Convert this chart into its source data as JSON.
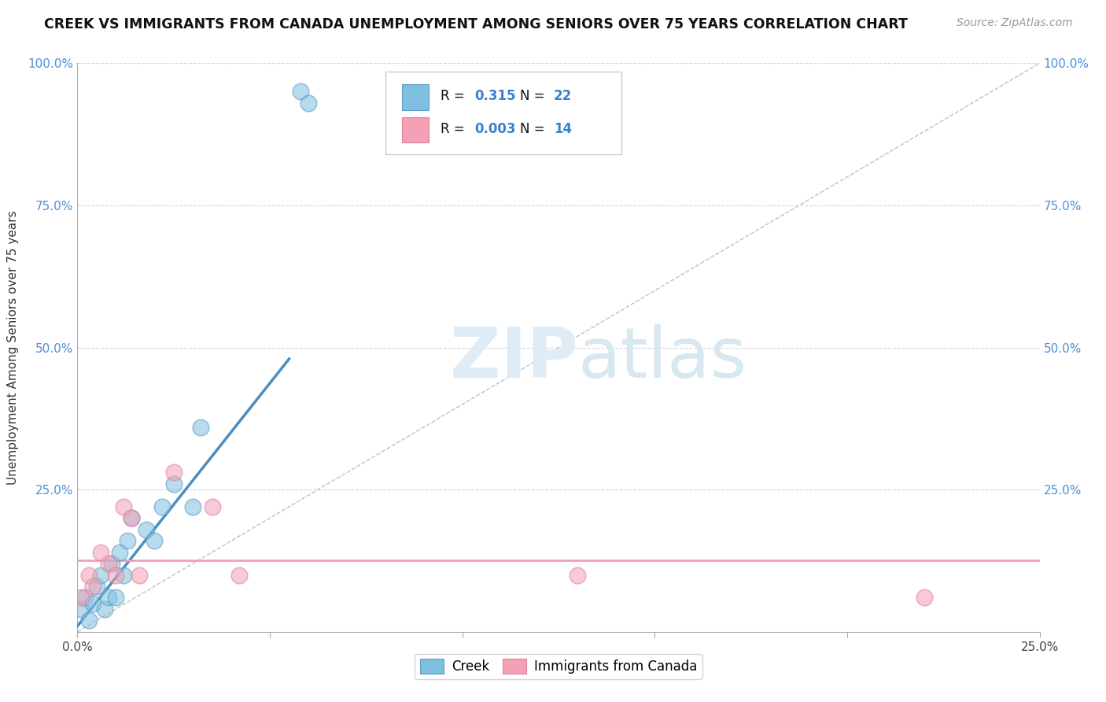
{
  "title": "CREEK VS IMMIGRANTS FROM CANADA UNEMPLOYMENT AMONG SENIORS OVER 75 YEARS CORRELATION CHART",
  "source": "Source: ZipAtlas.com",
  "ylabel": "Unemployment Among Seniors over 75 years",
  "xlim": [
    0.0,
    0.25
  ],
  "ylim": [
    0.0,
    1.0
  ],
  "xticks": [
    0.0,
    0.05,
    0.1,
    0.15,
    0.2,
    0.25
  ],
  "xtick_labels": [
    "0.0%",
    "",
    "",
    "",
    "",
    "25.0%"
  ],
  "yticks": [
    0.0,
    0.25,
    0.5,
    0.75,
    1.0
  ],
  "ytick_labels": [
    "",
    "25.0%",
    "50.0%",
    "75.0%",
    "100.0%"
  ],
  "creek_color": "#7fbfdf",
  "immigrants_color": "#f4a0b5",
  "creek_R": "0.315",
  "creek_N": "22",
  "immigrants_R": "0.003",
  "immigrants_N": "14",
  "legend_labels": [
    "Creek",
    "Immigrants from Canada"
  ],
  "watermark_zip": "ZIP",
  "watermark_atlas": "atlas",
  "background_color": "#ffffff",
  "grid_color": "#d8d8d8",
  "creek_scatter_x": [
    0.001,
    0.002,
    0.003,
    0.004,
    0.005,
    0.006,
    0.007,
    0.008,
    0.009,
    0.01,
    0.011,
    0.012,
    0.013,
    0.014,
    0.018,
    0.02,
    0.022,
    0.025,
    0.03,
    0.032,
    0.058,
    0.06
  ],
  "creek_scatter_y": [
    0.04,
    0.06,
    0.02,
    0.05,
    0.08,
    0.1,
    0.04,
    0.06,
    0.12,
    0.06,
    0.14,
    0.1,
    0.16,
    0.2,
    0.18,
    0.16,
    0.22,
    0.26,
    0.22,
    0.36,
    0.95,
    0.93
  ],
  "immigrants_scatter_x": [
    0.001,
    0.003,
    0.004,
    0.006,
    0.008,
    0.01,
    0.012,
    0.014,
    0.016,
    0.025,
    0.035,
    0.042,
    0.13,
    0.22
  ],
  "immigrants_scatter_y": [
    0.06,
    0.1,
    0.08,
    0.14,
    0.12,
    0.1,
    0.22,
    0.2,
    0.1,
    0.28,
    0.22,
    0.1,
    0.1,
    0.06
  ],
  "creek_line_x": [
    0.0,
    0.055
  ],
  "creek_line_y": [
    0.01,
    0.48
  ],
  "immigrants_line_y": 0.125,
  "diagonal_line_x": [
    0.0,
    0.25
  ],
  "diagonal_line_y": [
    0.0,
    1.0
  ]
}
